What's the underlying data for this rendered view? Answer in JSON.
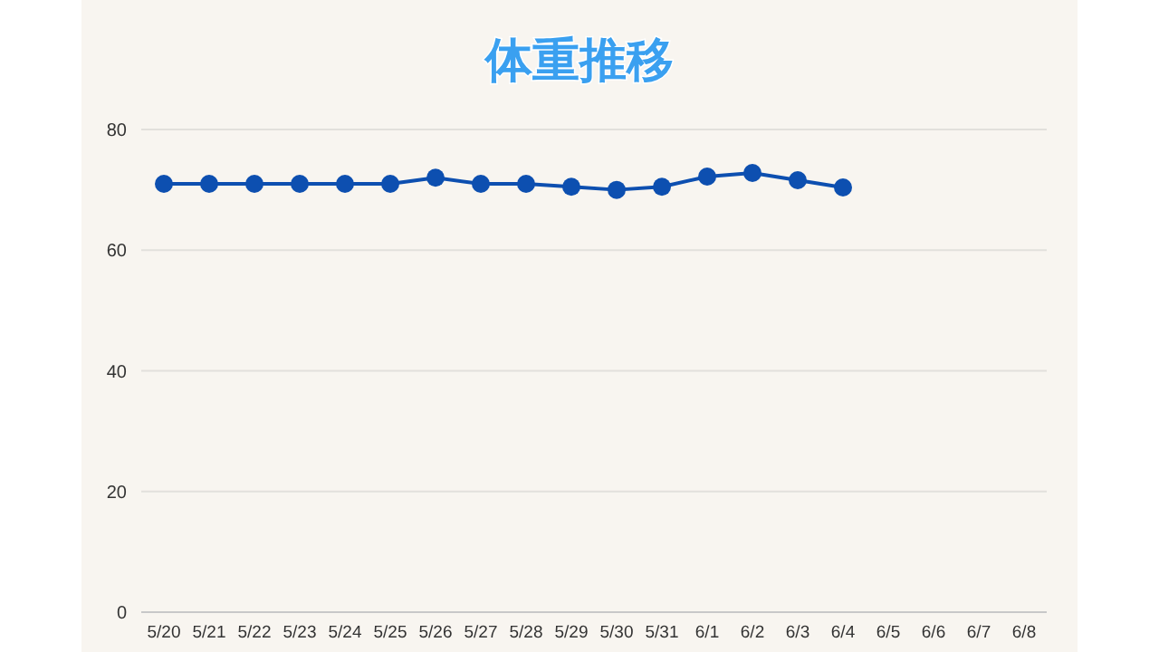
{
  "chart_data": {
    "type": "line",
    "title": "体重推移",
    "categories": [
      "5/20",
      "5/21",
      "5/22",
      "5/23",
      "5/24",
      "5/25",
      "5/26",
      "5/27",
      "5/28",
      "5/29",
      "5/30",
      "5/31",
      "6/1",
      "6/2",
      "6/3",
      "6/4",
      "6/5",
      "6/6",
      "6/7",
      "6/8"
    ],
    "series": [
      {
        "color": "#0d4fb0",
        "values": [
          71,
          71,
          71,
          71,
          71,
          71,
          72,
          71,
          71,
          70.5,
          70,
          70.5,
          72.2,
          72.8,
          71.6,
          70.4,
          null,
          null,
          null,
          null
        ]
      }
    ],
    "ylim": [
      0,
      80
    ],
    "yticks": [
      0,
      20,
      40,
      60,
      80
    ],
    "grid": "y",
    "marker": "circle",
    "line_style": "solid"
  }
}
